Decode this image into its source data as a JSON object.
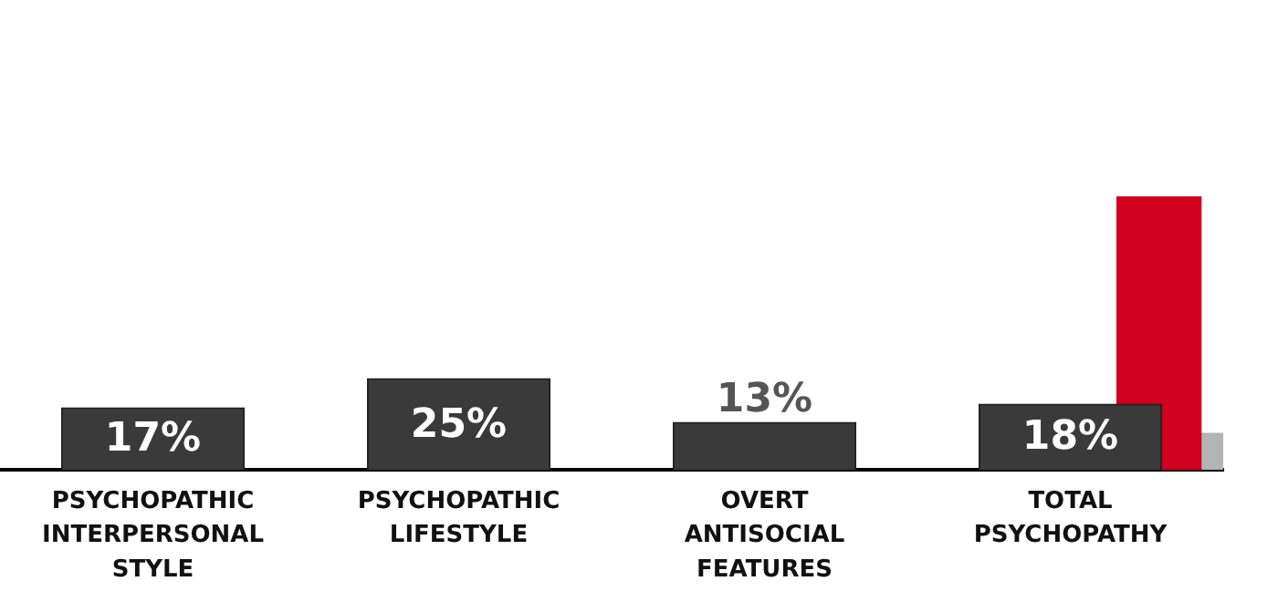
{
  "chart_data": {
    "type": "bar",
    "categories": [
      "PSYCHOPATHIC INTERPERSONAL STYLE",
      "PSYCHOPATHIC LIFESTYLE",
      "OVERT ANTISOCIAL FEATURES",
      "TOTAL PSYCHOPATHY"
    ],
    "series": [
      {
        "color": "#3a3a3a",
        "values": [
          17,
          25,
          13,
          18
        ],
        "value_labels": [
          "17%",
          "25%",
          "13%",
          "18%"
        ]
      },
      {
        "color": "#d0001e",
        "values": [
          null,
          null,
          null,
          75
        ]
      },
      {
        "color": "#b4b4b4",
        "values": [
          null,
          null,
          null,
          10
        ]
      }
    ],
    "legend": false,
    "tick_labels": "x"
  }
}
